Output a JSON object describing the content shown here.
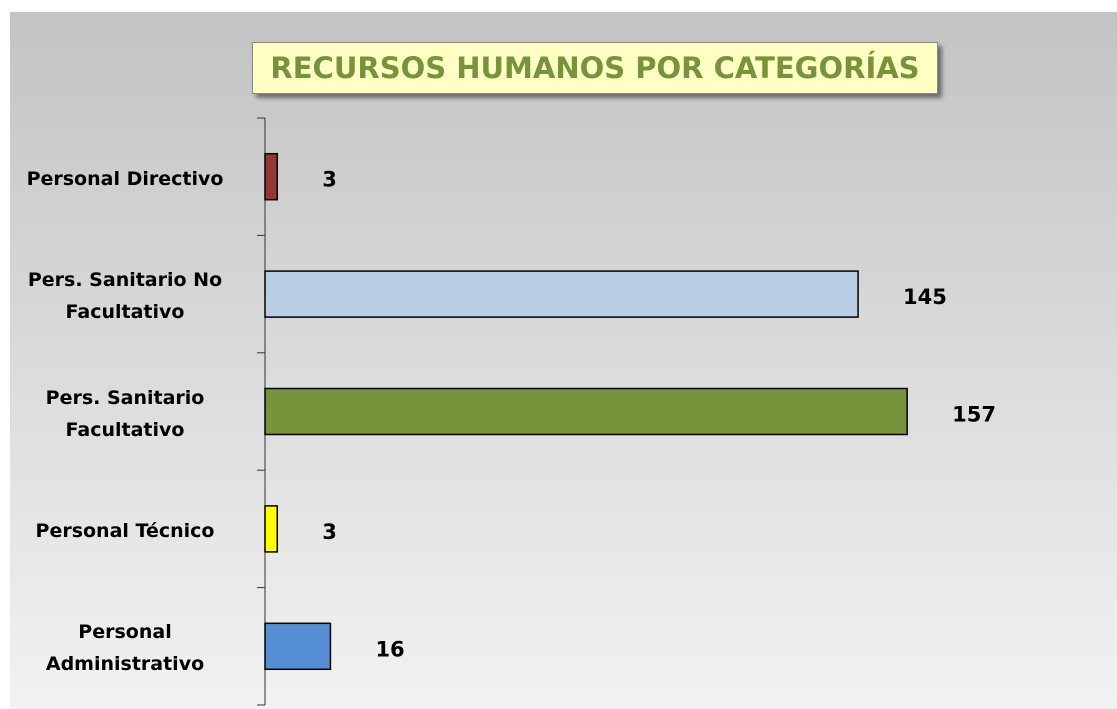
{
  "chart_data": {
    "type": "barh",
    "title": "RECURSOS HUMANOS POR CATEGORÍAS",
    "categories": [
      "Personal Directivo",
      "Pers. Sanitario No\nFacultativo",
      "Pers. Sanitario\nFacultativo",
      "Personal Técnico",
      "Personal\nAdministrativo"
    ],
    "values": [
      3,
      145,
      157,
      3,
      16
    ],
    "colors": [
      "#953735",
      "#b9cde5",
      "#77933c",
      "#ffff00",
      "#558ed5"
    ],
    "xlim": [
      0,
      200
    ]
  }
}
